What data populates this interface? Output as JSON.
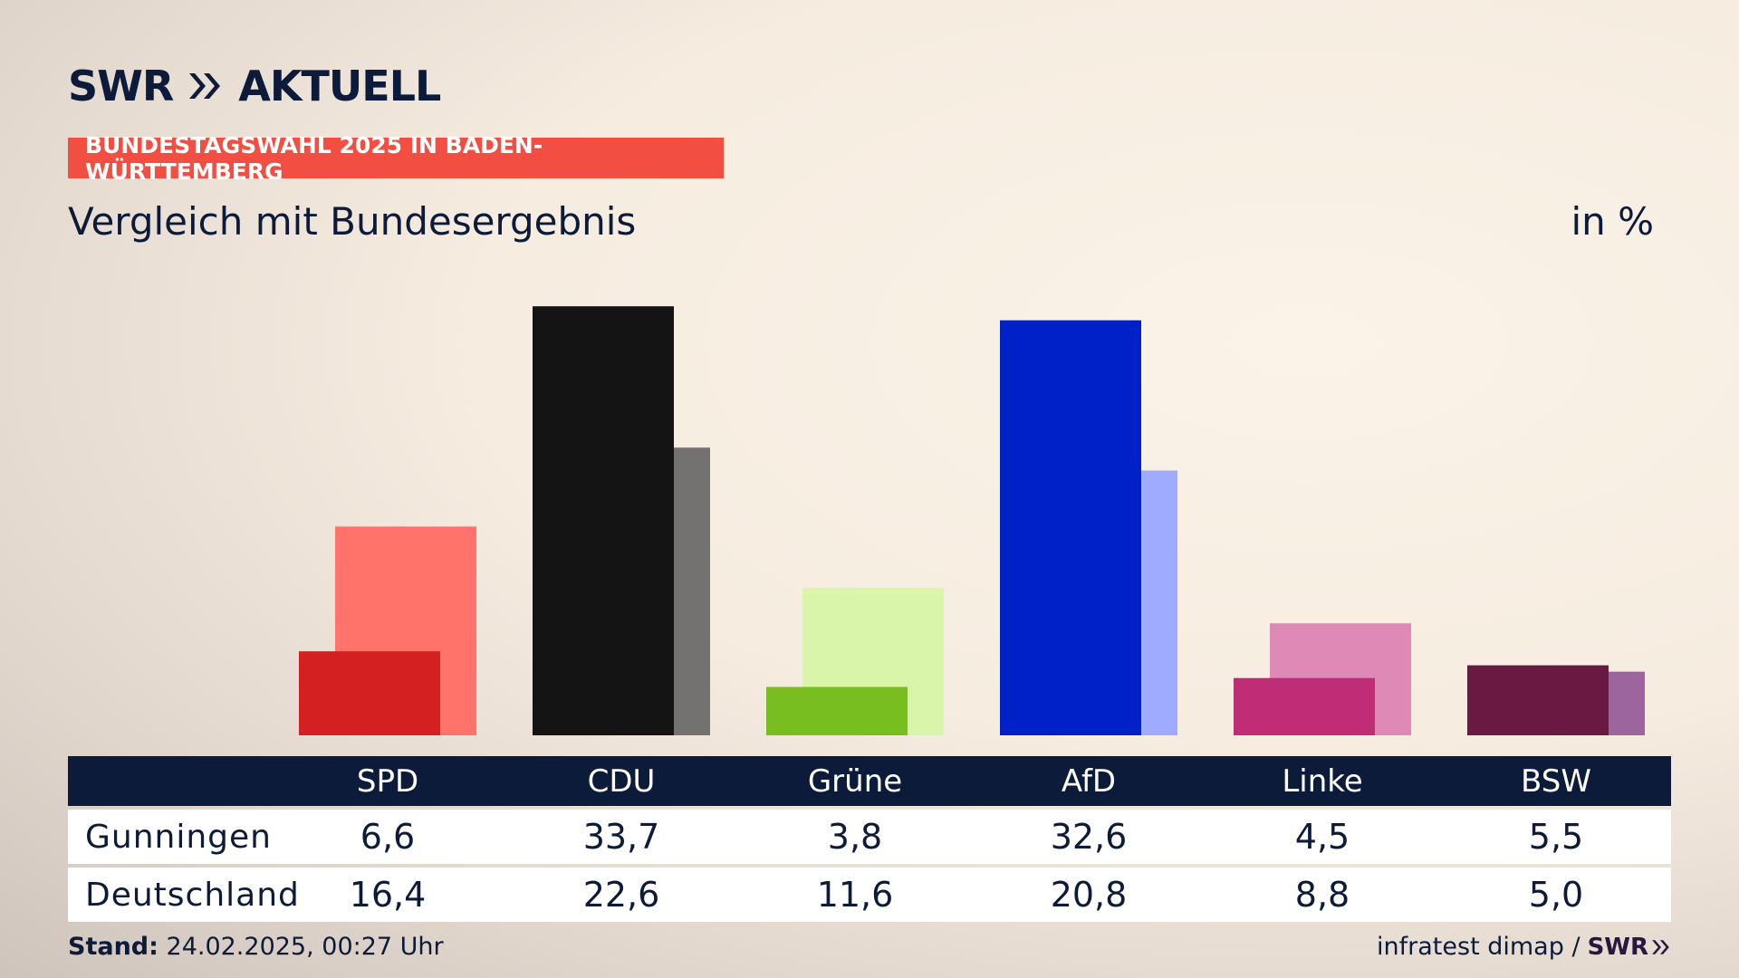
{
  "header": {
    "logo_text": "SWR",
    "logo_suffix": "AKTUELL",
    "banner": "BUNDESTAGSWAHL 2025 IN BADEN-WÜRTTEMBERG",
    "subtitle": "Vergleich mit Bundesergebnis",
    "unit": "in %"
  },
  "chart_data": {
    "type": "bar",
    "categories": [
      "SPD",
      "CDU",
      "Grüne",
      "AfD",
      "Linke",
      "BSW"
    ],
    "series": [
      {
        "name": "Gunningen",
        "values": [
          6.6,
          33.7,
          3.8,
          32.6,
          4.5,
          5.5
        ]
      },
      {
        "name": "Deutschland",
        "values": [
          16.4,
          22.6,
          11.6,
          20.8,
          8.8,
          5.0
        ]
      }
    ],
    "colors_primary": [
      "#d42020",
      "#141414",
      "#78be1e",
      "#0020c8",
      "#be2d76",
      "#6a1a42"
    ],
    "colors_secondary": [
      "#ff736b",
      "#737270",
      "#d9f5aa",
      "#9fabff",
      "#df89b6",
      "#9c659e"
    ],
    "ylim": [
      0,
      34
    ]
  },
  "table": {
    "row_labels": [
      "Gunningen",
      "Deutschland"
    ],
    "rows": [
      [
        "6,6",
        "33,7",
        "3,8",
        "32,6",
        "4,5",
        "5,5"
      ],
      [
        "16,4",
        "22,6",
        "11,6",
        "20,8",
        "8,8",
        "5,0"
      ]
    ]
  },
  "footer": {
    "stand_label": "Stand:",
    "stand_value": "24.02.2025, 00:27 Uhr",
    "source": "infratest dimap /",
    "source_logo": "SWR"
  }
}
